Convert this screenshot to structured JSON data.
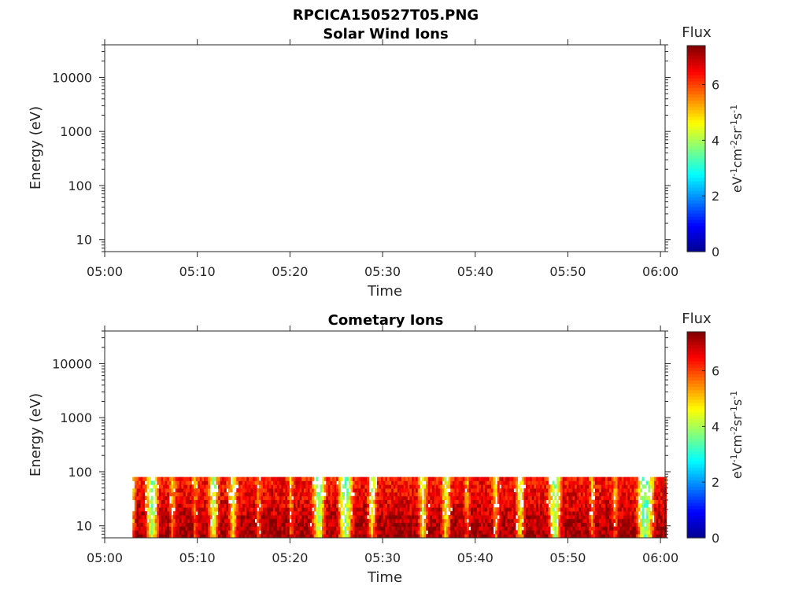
{
  "figure_title": "RPCICA150527T05.PNG",
  "colors": {
    "axis": "#262626",
    "background": "#ffffff",
    "colormap": [
      "#00008f",
      "#0000ff",
      "#0080ff",
      "#00ffff",
      "#80ff80",
      "#ffff00",
      "#ff8000",
      "#ff0000",
      "#800000"
    ]
  },
  "chart_data": [
    {
      "type": "heatmap",
      "title": "Solar Wind Ions",
      "xlabel": "Time",
      "ylabel": "Energy (eV)",
      "x_ticks": [
        "05:00",
        "05:10",
        "05:20",
        "05:30",
        "05:40",
        "05:50",
        "06:00"
      ],
      "y_ticks": [
        "10",
        "100",
        "1000",
        "10000"
      ],
      "y_scale": "log",
      "ylim": [
        6,
        40000
      ],
      "xlim_minutes": [
        0,
        60.5
      ],
      "colorbar": {
        "title": "Flux",
        "unit_base": [
          "eV",
          "cm",
          "sr",
          "s"
        ],
        "unit_exp": [
          "-1",
          "-2",
          "-1",
          "-1"
        ],
        "ticks": [
          "0",
          "2",
          "4",
          "6"
        ],
        "range": [
          0,
          7.4
        ]
      },
      "cells": []
    },
    {
      "type": "heatmap",
      "title": "Cometary Ions",
      "xlabel": "Time",
      "ylabel": "Energy (eV)",
      "x_ticks": [
        "05:00",
        "05:10",
        "05:20",
        "05:30",
        "05:40",
        "05:50",
        "06:00"
      ],
      "y_ticks": [
        "10",
        "100",
        "1000",
        "10000"
      ],
      "y_scale": "log",
      "ylim": [
        6,
        40000
      ],
      "xlim_minutes": [
        0,
        60.5
      ],
      "colorbar": {
        "title": "Flux",
        "unit_base": [
          "eV",
          "cm",
          "sr",
          "s"
        ],
        "unit_exp": [
          "-1",
          "-2",
          "-1",
          "-1"
        ],
        "ticks": [
          "0",
          "2",
          "4",
          "6"
        ],
        "range": [
          0,
          7.4
        ]
      },
      "energy_range_with_signal": [
        6,
        80
      ],
      "time_range_with_signal_minutes": [
        3,
        60.5
      ],
      "peak_intervals_minutes": [
        [
          3.5,
          4.0
        ],
        [
          6.0,
          6.7
        ],
        [
          7.8,
          9.2
        ],
        [
          10.2,
          10.8
        ],
        [
          12.5,
          13.0
        ],
        [
          14.5,
          16.0
        ],
        [
          17.0,
          19.5
        ],
        [
          20.5,
          22.0
        ],
        [
          24.0,
          24.8
        ],
        [
          27.0,
          28.0
        ],
        [
          29.5,
          32.0
        ],
        [
          32.3,
          33.5
        ],
        [
          35.0,
          36.0
        ],
        [
          37.5,
          38.5
        ],
        [
          39.5,
          41.5
        ],
        [
          42.7,
          44.0
        ],
        [
          45.5,
          47.5
        ],
        [
          49.5,
          52.0
        ],
        [
          53.0,
          54.5
        ],
        [
          55.5,
          57.0
        ],
        [
          59.5,
          60.5
        ]
      ],
      "peak_flux_range": [
        6.0,
        7.4
      ]
    }
  ]
}
